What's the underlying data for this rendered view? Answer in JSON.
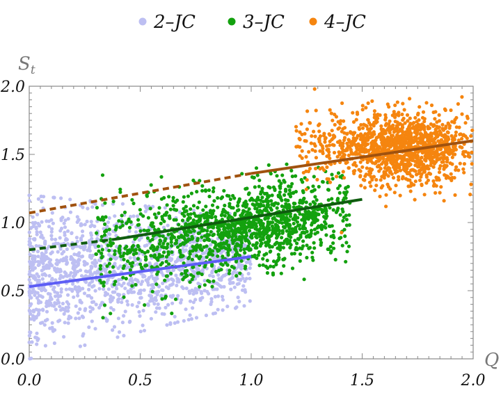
{
  "chart_data": {
    "type": "scatter",
    "xlabel": "Q",
    "ylabel": "S",
    "ylabel_sub": "t",
    "xlim": [
      0,
      2
    ],
    "ylim": [
      0,
      2
    ],
    "xticks": [
      "0.0",
      "0.5",
      "1.0",
      "1.5",
      "2.0"
    ],
    "yticks": [
      "0.0",
      "0.5",
      "1.0",
      "1.5",
      "2.0"
    ],
    "xtick_values": [
      0,
      0.5,
      1.0,
      1.5,
      2.0
    ],
    "ytick_values": [
      0,
      0.5,
      1.0,
      1.5,
      2.0
    ],
    "grid": false,
    "legend_position": "top",
    "series": [
      {
        "name": "2–JC",
        "color": "#bdbff2",
        "cloud": {
          "x_range": [
            0,
            1.0
          ],
          "y_at_x0": [
            0.0,
            1.2
          ],
          "y_at_xmax": [
            0.4,
            1.05
          ],
          "n": 1400
        },
        "fit": {
          "solid": [
            [
              0,
              0.53
            ],
            [
              1.0,
              0.75
            ]
          ]
        }
      },
      {
        "name": "3–JC",
        "color": "#13a10e",
        "cloud": {
          "x_range": [
            0.2,
            1.35
          ],
          "y_center": [
            0.85,
            1.05
          ],
          "n": 1500
        },
        "fit": {
          "dashed": [
            [
              0,
              0.8
            ],
            [
              0.4,
              0.88
            ]
          ],
          "solid": [
            [
              0.4,
              0.88
            ],
            [
              1.5,
              1.17
            ]
          ],
          "color": "#0f5c0f"
        }
      },
      {
        "name": "4–JC",
        "color": "#f5850f",
        "cloud": {
          "x_range": [
            1.1,
            2.0
          ],
          "y_center": [
            1.55,
            1.55
          ],
          "n": 1300
        },
        "fit": {
          "dashed": [
            [
              0,
              1.07
            ],
            [
              1.0,
              1.36
            ]
          ],
          "solid": [
            [
              1.0,
              1.36
            ],
            [
              2.0,
              1.6
            ]
          ],
          "color": "#a0520f"
        }
      }
    ]
  }
}
